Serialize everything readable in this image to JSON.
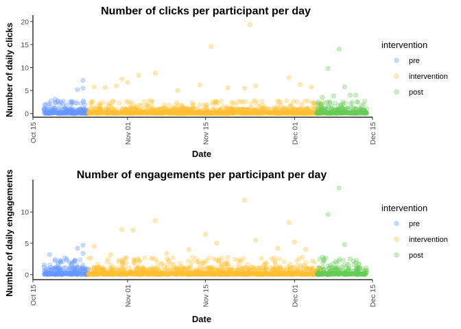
{
  "chart_data": [
    {
      "type": "scatter",
      "title": "Number of clicks per participant per day",
      "xlabel": "Date",
      "ylabel": "Number of daily clicks",
      "x_ticks": [
        "Oct 15",
        "Nov 01",
        "Nov 15",
        "Dec 01",
        "Dec 15"
      ],
      "y_ticks": [
        "0",
        "5",
        "10",
        "15",
        "20"
      ],
      "ylim": [
        -0.8,
        20.5
      ],
      "xlim": [
        "2021-10-15",
        "2021-12-15"
      ],
      "legend": {
        "title": "intervention",
        "placement": "right"
      },
      "series": [
        {
          "name": "pre",
          "color": "#6699ff",
          "x_range": [
            "2021-10-17",
            "2021-10-24"
          ],
          "max": 7.2,
          "points": [
            [
              "2021-10-17",
              1.0
            ],
            [
              "2021-10-18",
              2.0
            ],
            [
              "2021-10-19",
              3.1
            ],
            [
              "2021-10-20",
              2.5
            ],
            [
              "2021-10-21",
              1.8
            ],
            [
              "2021-10-22",
              2.2
            ],
            [
              "2021-10-23",
              5.2
            ],
            [
              "2021-10-24",
              7.2
            ],
            [
              "2021-10-24",
              5.5
            ]
          ]
        },
        {
          "name": "intervention",
          "color": "#ffc033",
          "x_range": [
            "2021-10-25",
            "2021-12-05"
          ],
          "max": 19.3,
          "points": [
            [
              "2021-10-26",
              5.8
            ],
            [
              "2021-10-28",
              5.7
            ],
            [
              "2021-10-30",
              6.0
            ],
            [
              "2021-10-31",
              7.5
            ],
            [
              "2021-11-01",
              6.8
            ],
            [
              "2021-11-03",
              8.3
            ],
            [
              "2021-11-06",
              8.8
            ],
            [
              "2021-11-10",
              5.0
            ],
            [
              "2021-11-14",
              6.2
            ],
            [
              "2021-11-16",
              14.6
            ],
            [
              "2021-11-19",
              5.6
            ],
            [
              "2021-11-22",
              5.5
            ],
            [
              "2021-11-24",
              6.0
            ],
            [
              "2021-11-23",
              19.3
            ],
            [
              "2021-11-30",
              7.8
            ],
            [
              "2021-12-02",
              6.3
            ],
            [
              "2021-12-04",
              5.8
            ]
          ]
        },
        {
          "name": "post",
          "color": "#66cc55",
          "x_range": [
            "2021-12-05",
            "2021-12-13"
          ],
          "max": 14.0,
          "points": [
            [
              "2021-12-06",
              3.5
            ],
            [
              "2021-12-07",
              9.8
            ],
            [
              "2021-12-09",
              14.0
            ],
            [
              "2021-12-10",
              5.8
            ],
            [
              "2021-12-11",
              4.0
            ],
            [
              "2021-12-12",
              4.0
            ],
            [
              "2021-12-08",
              3.8
            ]
          ]
        }
      ]
    },
    {
      "type": "scatter",
      "title": "Number of engagements per participant per day",
      "xlabel": "Date",
      "ylabel": "Number of daily engagements",
      "x_ticks": [
        "Oct 15",
        "Nov 01",
        "Nov 15",
        "Dec 01",
        "Dec 15"
      ],
      "y_ticks": [
        "0",
        "5",
        "10"
      ],
      "ylim": [
        -0.8,
        14.5
      ],
      "xlim": [
        "2021-10-15",
        "2021-12-15"
      ],
      "legend": {
        "title": "intervention",
        "placement": "right"
      },
      "series": [
        {
          "name": "pre",
          "color": "#6699ff",
          "x_range": [
            "2021-10-17",
            "2021-10-24"
          ],
          "max": 4.7,
          "points": [
            [
              "2021-10-17",
              1.2
            ],
            [
              "2021-10-18",
              3.2
            ],
            [
              "2021-10-19",
              2.4
            ],
            [
              "2021-10-20",
              2.0
            ],
            [
              "2021-10-21",
              2.5
            ],
            [
              "2021-10-22",
              1.7
            ],
            [
              "2021-10-23",
              4.2
            ],
            [
              "2021-10-24",
              4.7
            ],
            [
              "2021-10-24",
              3.4
            ]
          ]
        },
        {
          "name": "intervention",
          "color": "#ffc033",
          "x_range": [
            "2021-10-25",
            "2021-12-05"
          ],
          "max": 11.9,
          "points": [
            [
              "2021-10-26",
              4.5
            ],
            [
              "2021-10-29",
              3.2
            ],
            [
              "2021-10-31",
              7.2
            ],
            [
              "2021-11-02",
              7.1
            ],
            [
              "2021-11-06",
              8.6
            ],
            [
              "2021-11-08",
              3.4
            ],
            [
              "2021-11-12",
              4.0
            ],
            [
              "2021-11-15",
              6.4
            ],
            [
              "2021-11-17",
              5.0
            ],
            [
              "2021-11-22",
              11.9
            ],
            [
              "2021-11-24",
              5.5
            ],
            [
              "2021-11-28",
              4.2
            ],
            [
              "2021-11-30",
              8.3
            ],
            [
              "2021-12-01",
              5.2
            ],
            [
              "2021-12-03",
              4.0
            ]
          ]
        },
        {
          "name": "post",
          "color": "#66cc55",
          "x_range": [
            "2021-12-05",
            "2021-12-13"
          ],
          "max": 13.8,
          "points": [
            [
              "2021-12-06",
              2.8
            ],
            [
              "2021-12-07",
              9.6
            ],
            [
              "2021-12-09",
              13.8
            ],
            [
              "2021-12-10",
              4.8
            ],
            [
              "2021-12-11",
              2.5
            ],
            [
              "2021-12-12",
              1.9
            ]
          ]
        }
      ]
    }
  ]
}
